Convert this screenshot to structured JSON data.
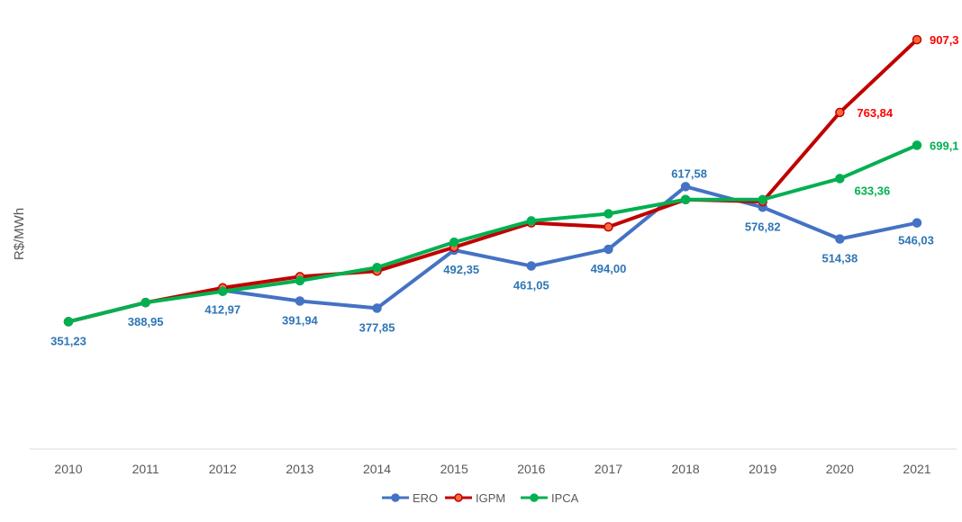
{
  "chart_data": {
    "type": "line",
    "ylabel": "R$/MWh",
    "xlabel": "",
    "categories": [
      "2010",
      "2011",
      "2012",
      "2013",
      "2014",
      "2015",
      "2016",
      "2017",
      "2018",
      "2019",
      "2020",
      "2021"
    ],
    "ylim": [
      100,
      950
    ],
    "grid": false,
    "legend": "bottom",
    "series": [
      {
        "name": "ERO",
        "color": "#4472C4",
        "values": [
          351.23,
          388.95,
          412.97,
          391.94,
          377.85,
          492.35,
          461.05,
          494.0,
          617.58,
          576.82,
          514.38,
          546.03
        ],
        "labels": [
          "351,23",
          "388,95",
          "412,97",
          "391,94",
          "377,85",
          "492,35",
          "461,05",
          "494,00",
          "617,58",
          "576,82",
          "514,38",
          "546,03"
        ],
        "label_color": "#2E75B6"
      },
      {
        "name": "IGPM",
        "color": "#C00000",
        "marker_fill": "#FF6A3D",
        "values": [
          351.23,
          388.95,
          418,
          440,
          451,
          498,
          546,
          538,
          592,
          588,
          763.84,
          907.3
        ],
        "labels": [
          "",
          "",
          "",
          "",
          "",
          "",
          "",
          "",
          "",
          "",
          "763,84",
          "907,3"
        ],
        "label_color": "#FF0000"
      },
      {
        "name": "IPCA",
        "color": "#00B050",
        "marker_fill": "#00B050",
        "values": [
          351.23,
          388.95,
          411,
          432,
          458,
          508,
          550,
          564,
          592,
          592,
          633.36,
          699.1
        ],
        "labels": [
          "",
          "",
          "",
          "",
          "",
          "",
          "",
          "",
          "",
          "",
          "633,36",
          "699,1"
        ],
        "label_color": "#00B050"
      }
    ]
  }
}
